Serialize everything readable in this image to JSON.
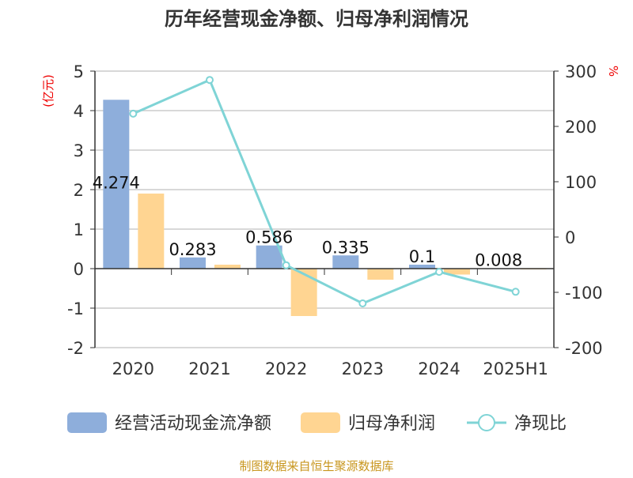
{
  "chart_data": {
    "type": "bar+line",
    "title": "历年经营现金净额、归母净利润情况",
    "categories": [
      "2020",
      "2021",
      "2022",
      "2023",
      "2024",
      "2025H1"
    ],
    "ylabel_left": "(亿元)",
    "ylabel_right": "%",
    "ylim_left": [
      -2,
      5
    ],
    "yticks_left": [
      "-2",
      "-1",
      "0",
      "1",
      "2",
      "3",
      "4",
      "5"
    ],
    "ylim_right": [
      -200,
      300
    ],
    "yticks_right": [
      "-200",
      "-100",
      "0",
      "100",
      "200",
      "300"
    ],
    "grid": true,
    "legend_position": "bottom",
    "series": [
      {
        "name": "经营活动现金流净额",
        "type": "bar",
        "axis": "left",
        "color": "#8eaedb",
        "values": [
          4.274,
          0.283,
          0.586,
          0.335,
          0.1,
          0.008
        ],
        "labels": [
          "4.274",
          "0.283",
          "0.586",
          "0.335",
          "0.1",
          "0.008"
        ]
      },
      {
        "name": "归母净利润",
        "type": "bar",
        "axis": "left",
        "color": "#ffd592",
        "values": [
          1.9,
          0.1,
          -1.2,
          -0.28,
          -0.15,
          -0.02
        ]
      },
      {
        "name": "净现比",
        "type": "line",
        "axis": "right",
        "color": "#7fd4d6",
        "values": [
          223,
          284,
          -51,
          -120,
          -63,
          -99
        ]
      }
    ]
  },
  "source": "制图数据来自恒生聚源数据库"
}
